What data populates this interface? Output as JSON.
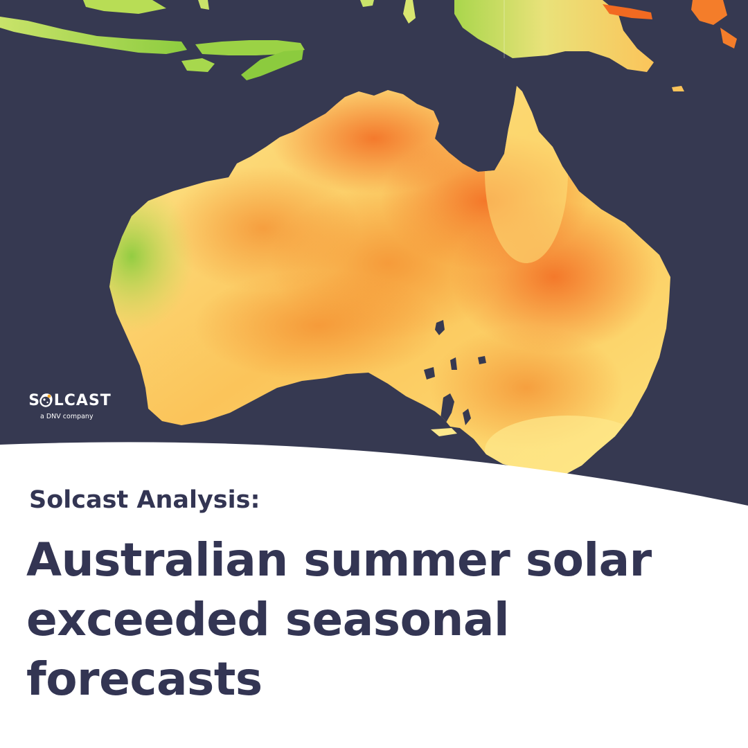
{
  "brand": {
    "logo_text": "SOLCAST",
    "tagline": "a DNV company"
  },
  "headline": {
    "kicker": "Solcast Analysis:",
    "title_lines": [
      "Australian summer solar",
      "exceeded seasonal",
      "forecasts"
    ]
  },
  "colors": {
    "ocean": "#363951",
    "text": "#333553",
    "irradiance_low": "#8dcc3f",
    "irradiance_mid": "#fde07a",
    "irradiance_high": "#f26a21"
  },
  "icons": {
    "logo_mark": "sun-globe-icon"
  }
}
